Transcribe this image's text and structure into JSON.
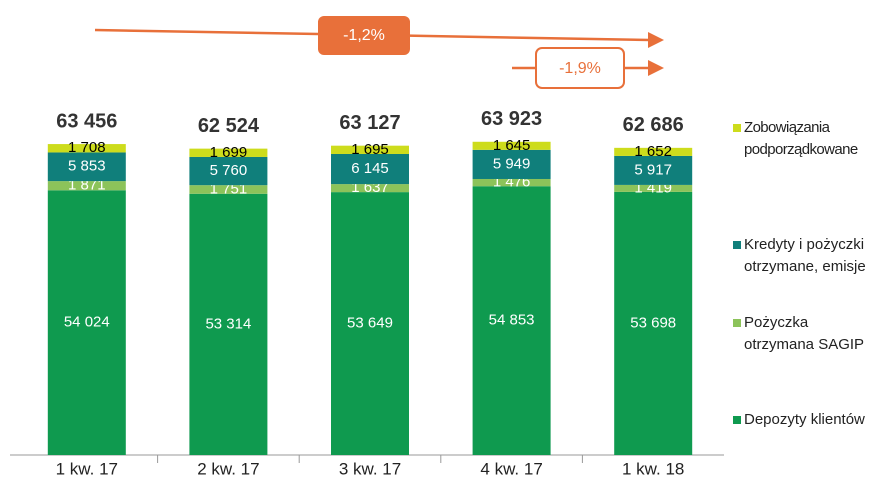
{
  "chart_data": {
    "type": "bar",
    "stacked": true,
    "categories": [
      "1 kw. 17",
      "2 kw. 17",
      "3 kw. 17",
      "4 kw. 17",
      "1 kw. 18"
    ],
    "series": [
      {
        "name": "Depozyty klientów",
        "color": "#0f9a4f",
        "label_color": "#ffffff",
        "values": [
          54024,
          53314,
          53649,
          54853,
          53698
        ],
        "value_labels": [
          "54 024",
          "53 314",
          "53 649",
          "54 853",
          "53 698"
        ]
      },
      {
        "name": "Pożyczka otrzymana SAGIP",
        "color": "#8cc35a",
        "label_color": "#ffffff",
        "values": [
          1871,
          1751,
          1637,
          1476,
          1419
        ],
        "value_labels": [
          "1 871",
          "1 751",
          "1 637",
          "1 476",
          "1 419"
        ]
      },
      {
        "name": "Kredyty i pożyczki otrzymane, emisje",
        "color": "#107f7b",
        "label_color": "#ffffff",
        "values": [
          5853,
          5760,
          6145,
          5949,
          5917
        ],
        "value_labels": [
          "5 853",
          "5 760",
          "6 145",
          "5 949",
          "5 917"
        ]
      },
      {
        "name": "Zobowiązania podporządkowane",
        "color": "#cddc1c",
        "label_color": "#000000",
        "values": [
          1708,
          1699,
          1695,
          1645,
          1652
        ],
        "value_labels": [
          "1 708",
          "1 699",
          "1 695",
          "1 645",
          "1 652"
        ]
      }
    ],
    "totals": [
      63456,
      62524,
      63127,
      63923,
      62686
    ],
    "total_labels": [
      "63 456",
      "62 524",
      "63 127",
      "63 923",
      "62 686"
    ],
    "annotations": [
      "-1,2%",
      "-1,9%"
    ],
    "ylim": [
      0,
      70000
    ],
    "legend": "right"
  }
}
